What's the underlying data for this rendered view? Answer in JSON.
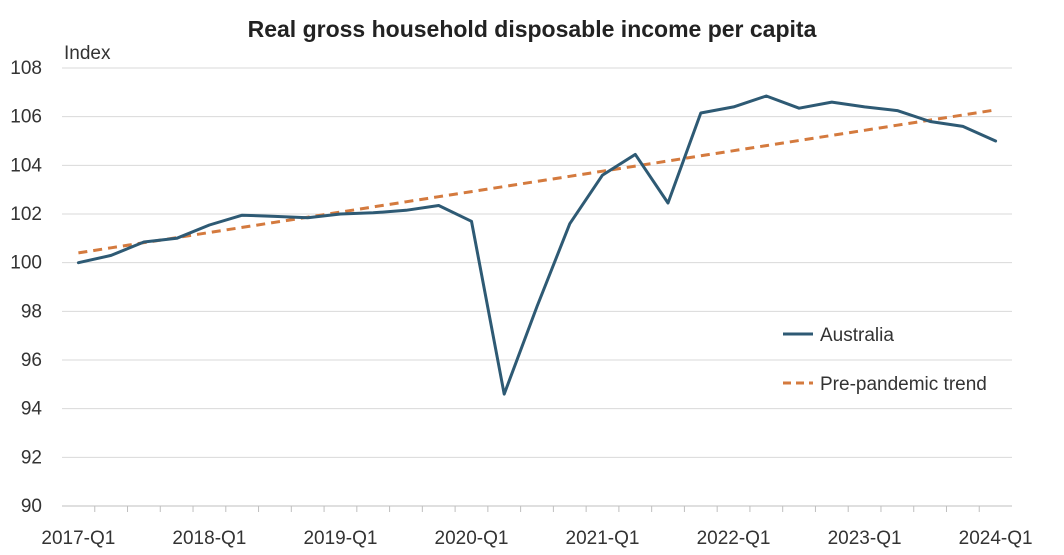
{
  "chart_data": {
    "type": "line",
    "title": "Real gross household disposable income per capita",
    "ylabel": "Index",
    "xlabel": "",
    "ylim": [
      90,
      108
    ],
    "yticks": [
      90,
      92,
      94,
      96,
      98,
      100,
      102,
      104,
      106,
      108
    ],
    "x": [
      "2017-Q1",
      "2017-Q2",
      "2017-Q3",
      "2017-Q4",
      "2018-Q1",
      "2018-Q2",
      "2018-Q3",
      "2018-Q4",
      "2019-Q1",
      "2019-Q2",
      "2019-Q3",
      "2019-Q4",
      "2020-Q1",
      "2020-Q2",
      "2020-Q3",
      "2020-Q4",
      "2021-Q1",
      "2021-Q2",
      "2021-Q3",
      "2021-Q4",
      "2022-Q1",
      "2022-Q2",
      "2022-Q3",
      "2022-Q4",
      "2023-Q1",
      "2023-Q2",
      "2023-Q3",
      "2023-Q4",
      "2024-Q1"
    ],
    "xtick_labels": [
      "2017-Q1",
      "2018-Q1",
      "2019-Q1",
      "2020-Q1",
      "2021-Q1",
      "2022-Q1",
      "2023-Q1",
      "2024-Q1"
    ],
    "grid": "horizontal",
    "legend_position": "lower-right",
    "series": [
      {
        "name": "Australia",
        "color": "#2e5a74",
        "style": "solid",
        "values": [
          100.0,
          100.3,
          100.85,
          101.0,
          101.55,
          101.95,
          101.9,
          101.85,
          102.0,
          102.05,
          102.15,
          102.35,
          101.7,
          94.6,
          98.2,
          101.6,
          103.6,
          104.45,
          102.45,
          106.15,
          106.4,
          106.85,
          106.35,
          106.6,
          106.4,
          106.25,
          105.8,
          105.6,
          105.0
        ]
      },
      {
        "name": "Pre-pandemic trend",
        "color": "#d47a3e",
        "style": "dashed",
        "values": [
          100.4,
          100.61,
          100.82,
          101.03,
          101.24,
          101.45,
          101.66,
          101.87,
          102.08,
          102.29,
          102.5,
          102.71,
          102.92,
          103.13,
          103.34,
          103.55,
          103.76,
          103.97,
          104.18,
          104.39,
          104.6,
          104.81,
          105.02,
          105.23,
          105.44,
          105.65,
          105.86,
          106.07,
          106.28
        ]
      }
    ]
  }
}
